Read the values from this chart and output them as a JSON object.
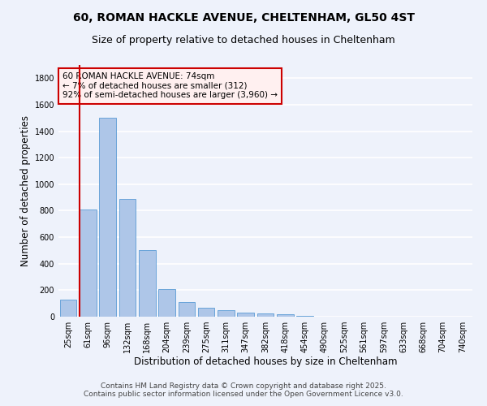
{
  "title_line1": "60, ROMAN HACKLE AVENUE, CHELTENHAM, GL50 4ST",
  "title_line2": "Size of property relative to detached houses in Cheltenham",
  "xlabel": "Distribution of detached houses by size in Cheltenham",
  "ylabel": "Number of detached properties",
  "categories": [
    "25sqm",
    "61sqm",
    "96sqm",
    "132sqm",
    "168sqm",
    "204sqm",
    "239sqm",
    "275sqm",
    "311sqm",
    "347sqm",
    "382sqm",
    "418sqm",
    "454sqm",
    "490sqm",
    "525sqm",
    "561sqm",
    "597sqm",
    "633sqm",
    "668sqm",
    "704sqm",
    "740sqm"
  ],
  "values": [
    130,
    808,
    1500,
    890,
    500,
    210,
    113,
    65,
    47,
    33,
    27,
    18,
    8,
    3,
    2,
    1,
    1,
    0,
    0,
    0,
    0
  ],
  "bar_color": "#aec6e8",
  "bar_edge_color": "#5a9bd5",
  "vline_color": "#cc0000",
  "annotation_text": "60 ROMAN HACKLE AVENUE: 74sqm\n← 7% of detached houses are smaller (312)\n92% of semi-detached houses are larger (3,960) →",
  "annotation_box_edge": "#cc0000",
  "ylim": [
    0,
    1900
  ],
  "yticks": [
    0,
    200,
    400,
    600,
    800,
    1000,
    1200,
    1400,
    1600,
    1800
  ],
  "bg_color": "#eef2fb",
  "grid_color": "#ffffff",
  "footer_line1": "Contains HM Land Registry data © Crown copyright and database right 2025.",
  "footer_line2": "Contains public sector information licensed under the Open Government Licence v3.0.",
  "title_fontsize": 10,
  "subtitle_fontsize": 9,
  "axis_label_fontsize": 8.5,
  "tick_fontsize": 7,
  "annotation_fontsize": 7.5,
  "footer_fontsize": 6.5
}
